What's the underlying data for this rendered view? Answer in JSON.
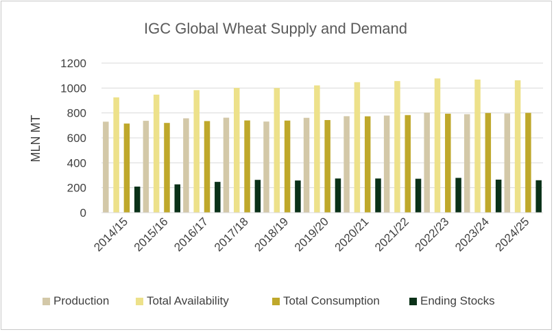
{
  "chart_data": {
    "type": "bar",
    "title": "IGC Global Wheat Supply and Demand",
    "xlabel": "",
    "ylabel": "MLN MT",
    "ylim": [
      0,
      1200
    ],
    "yticks": [
      0,
      200,
      400,
      600,
      800,
      1000,
      1200
    ],
    "grid": true,
    "legend_position": "bottom",
    "categories": [
      "2014/15",
      "2015/16",
      "2016/17",
      "2017/18",
      "2018/19",
      "2019/20",
      "2020/21",
      "2021/22",
      "2022/23",
      "2023/24",
      "2024/25"
    ],
    "series": [
      {
        "name": "Production",
        "color": "#d3c8a8",
        "values": [
          730,
          737,
          757,
          762,
          731,
          761,
          774,
          779,
          803,
          790,
          796
        ]
      },
      {
        "name": "Total Availability",
        "color": "#ede18a",
        "values": [
          925,
          947,
          983,
          1001,
          1000,
          1021,
          1047,
          1056,
          1077,
          1068,
          1062
        ]
      },
      {
        "name": "Total Consumption",
        "color": "#bfa82b",
        "values": [
          715,
          720,
          735,
          740,
          739,
          743,
          773,
          783,
          794,
          800,
          801
        ]
      },
      {
        "name": "Ending Stocks",
        "color": "#0a3118",
        "values": [
          209,
          227,
          247,
          263,
          258,
          274,
          274,
          272,
          279,
          265,
          260
        ]
      }
    ]
  }
}
